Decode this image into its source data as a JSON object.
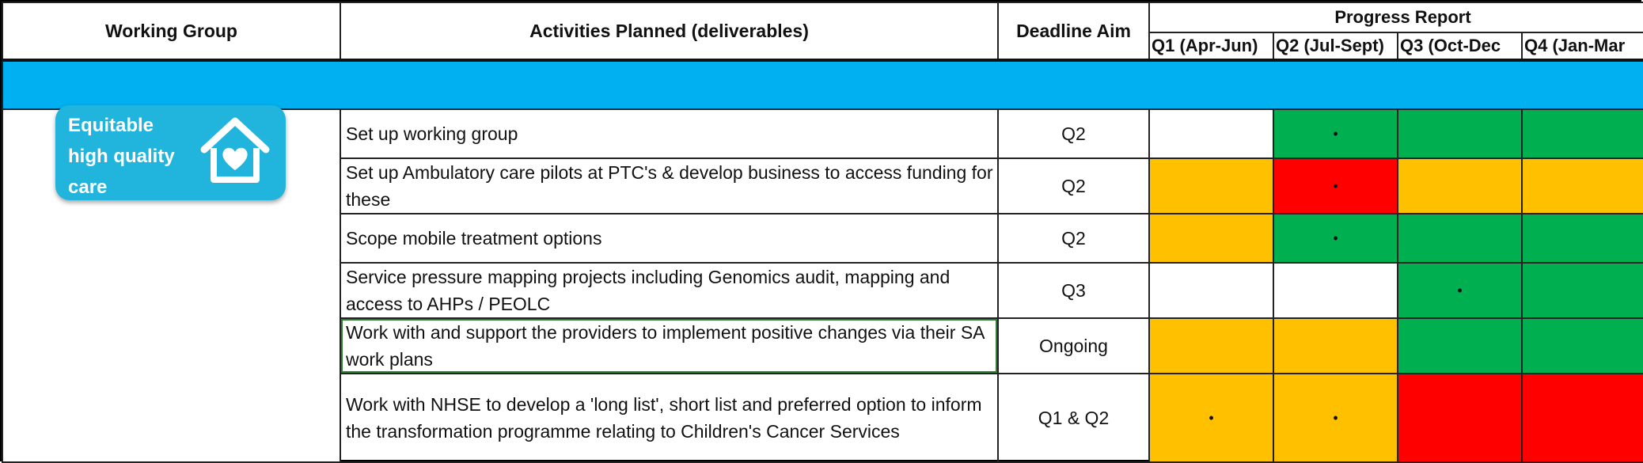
{
  "headers": {
    "working_group": "Working Group",
    "activities": "Activities Planned (deliverables)",
    "deadline": "Deadline Aim",
    "progress": "Progress Report",
    "quarters": [
      "Q1 (Apr-Jun)",
      "Q2 (Jul-Sept)",
      "Q3 (Oct-Dec",
      "Q4 (Jan-Mar"
    ]
  },
  "working_group": {
    "badge_lines": [
      "Equitable",
      "high quality",
      "care"
    ],
    "icon": "house-heart-icon"
  },
  "status_colors": {
    "green": "#00b050",
    "amber": "#ffc000",
    "red": "#ff0000",
    "white": "#ffffff",
    "band": "#00b0f0"
  },
  "rows": [
    {
      "activity": "Set up working group",
      "deadline": "Q2",
      "status": [
        "white",
        "green",
        "green",
        "green"
      ],
      "marks": [
        "",
        "•",
        "",
        ""
      ]
    },
    {
      "activity": "Set up Ambulatory care pilots at PTC's & develop business to access funding for these",
      "deadline": "Q2",
      "status": [
        "amber",
        "red",
        "amber",
        "amber"
      ],
      "marks": [
        "",
        "•",
        "",
        ""
      ]
    },
    {
      "activity": "Scope mobile treatment options",
      "deadline": "Q2",
      "status": [
        "amber",
        "green",
        "green",
        "green"
      ],
      "marks": [
        "",
        "•",
        "",
        ""
      ]
    },
    {
      "activity": "Service pressure mapping projects including Genomics audit, mapping and access to AHPs / PEOLC",
      "deadline": "Q3",
      "status": [
        "white",
        "white",
        "green",
        "green"
      ],
      "marks": [
        "",
        "",
        "•",
        ""
      ]
    },
    {
      "activity": "Work with and support the providers to implement positive changes via their SA work plans",
      "deadline": "Ongoing",
      "status": [
        "amber",
        "amber",
        "green",
        "green"
      ],
      "marks": [
        "",
        "",
        "",
        ""
      ]
    },
    {
      "activity": "Work with NHSE to develop a 'long list', short list and preferred option to inform the transformation programme relating to Children's Cancer Services",
      "deadline": "Q1 & Q2",
      "status": [
        "amber",
        "amber",
        "red",
        "red"
      ],
      "marks": [
        "•",
        "•",
        "",
        ""
      ]
    }
  ]
}
